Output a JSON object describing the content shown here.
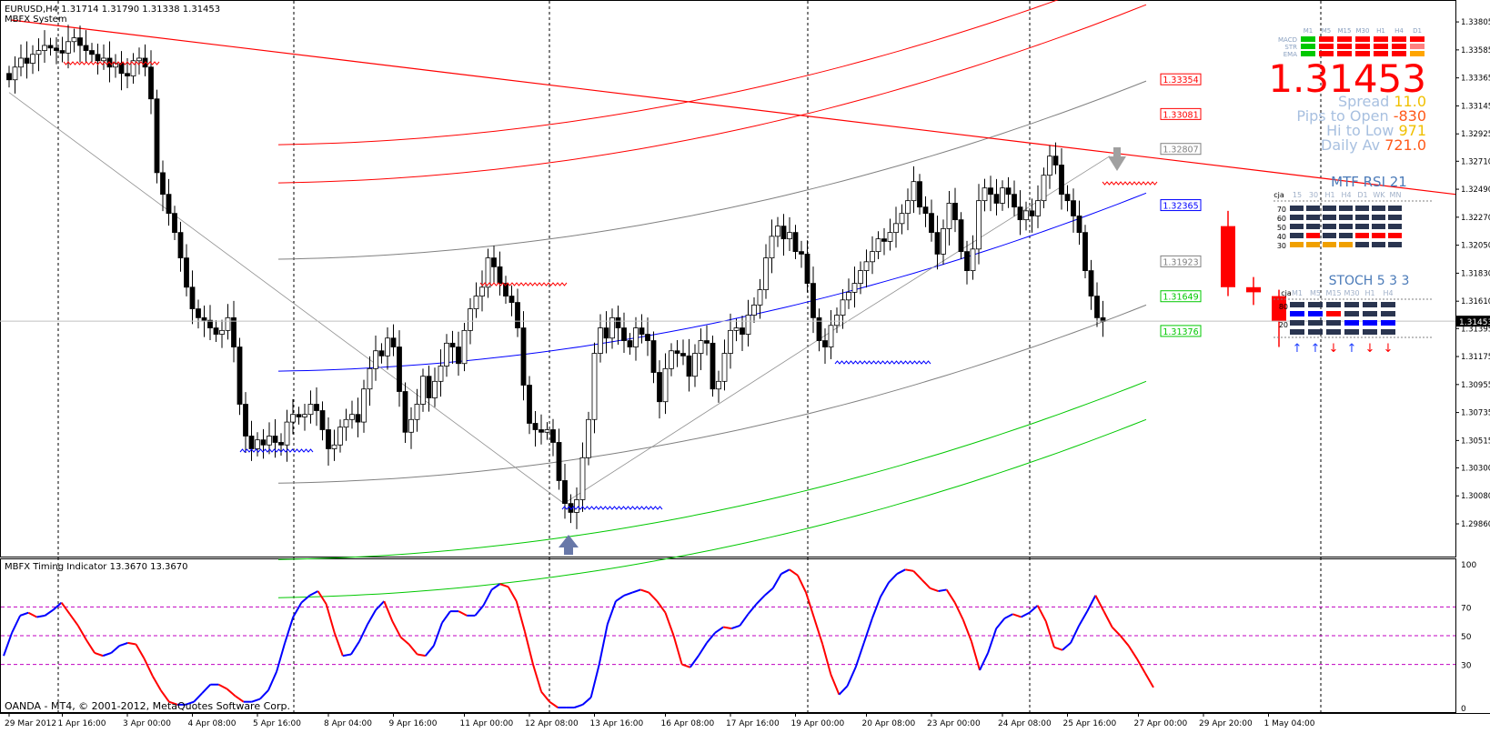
{
  "header": {
    "symbol_line": "EURUSD,H4  1.31714 1.31790 1.31338 1.31453",
    "system_name": "MBFX System"
  },
  "footer": {
    "copyright": "OANDA - MT4, © 2001-2012, MetaQuotes Software Corp."
  },
  "sub_window": {
    "title": "MBFX Timing Indicator 13.3670 13.3670"
  },
  "price_panel": {
    "big_price": "1.31453",
    "rows": [
      {
        "label": "Spread",
        "value": "11.0",
        "label_color": "#a8c0e0",
        "value_color": "#f0c000"
      },
      {
        "label": "Pips to Open",
        "value": "-830",
        "label_color": "#a8c0e0",
        "value_color": "#ff5a1a"
      },
      {
        "label": "Hi to Low",
        "value": "971",
        "label_color": "#a8c0e0",
        "value_color": "#f0c000"
      },
      {
        "label": "Daily Av",
        "value": "721.0",
        "label_color": "#a8c0e0",
        "value_color": "#ff5a1a"
      }
    ],
    "tf_labels": [
      "M1",
      "M5",
      "M15",
      "M30",
      "H1",
      "H4",
      "D1"
    ],
    "ind_labels": [
      "MACD",
      "STR",
      "EMA"
    ]
  },
  "rsi_panel": {
    "title": "MTF RSI  21",
    "header": [
      "cja",
      "15",
      "30",
      "H1",
      "H4",
      "D1",
      "WK",
      "MN"
    ],
    "levels": [
      "70",
      "60",
      "50",
      "40",
      "30"
    ]
  },
  "stoch_panel": {
    "title": "STOCH  5 3 3",
    "header": [
      "cja",
      "M1",
      "M5",
      "M15",
      "M30",
      "H1",
      "H4"
    ],
    "levels": [
      "80",
      "20"
    ],
    "arrows": [
      "↑",
      "↑",
      "↓",
      "↑",
      "↓",
      "↓"
    ]
  },
  "colors": {
    "bull": "#ffffff",
    "bear": "#000000",
    "red": "#ff0000",
    "blue": "#0000ff",
    "green": "#00c800",
    "gray": "#808080",
    "orange": "#ffa500",
    "magenta": "#c000c0"
  },
  "chart_data": [
    {
      "type": "candlestick",
      "title": "EURUSD,H4",
      "ylim": [
        1.2966,
        1.3392
      ],
      "y_ticks": [
        "1.33805",
        "1.33585",
        "1.33365",
        "1.33145",
        "1.32925",
        "1.32710",
        "1.32490",
        "1.32270",
        "1.32050",
        "1.31830",
        "1.31610",
        "1.31453",
        "1.31395",
        "1.31175",
        "1.30955",
        "1.30735",
        "1.30515",
        "1.30300",
        "1.30080",
        "1.29860"
      ],
      "current_price": "1.31453",
      "x_ticks": [
        "29 Mar 2012",
        "1 Apr 16:00",
        "3 Apr 00:00",
        "4 Apr 08:00",
        "5 Apr 16:00",
        "8 Apr 04:00",
        "9 Apr 16:00",
        "11 Apr 00:00",
        "12 Apr 08:00",
        "13 Apr 16:00",
        "16 Apr 08:00",
        "17 Apr 16:00",
        "19 Apr 00:00",
        "20 Apr 08:00",
        "23 Apr 00:00",
        "24 Apr 08:00",
        "25 Apr 16:00",
        "27 Apr 00:00",
        "29 Apr 20:00",
        "1 May 04:00"
      ],
      "close_path": [
        1.3335,
        1.3345,
        1.3352,
        1.3348,
        1.3355,
        1.3358,
        1.3362,
        1.336,
        1.3358,
        1.3356,
        1.3365,
        1.3368,
        1.3362,
        1.3358,
        1.3355,
        1.335,
        1.3352,
        1.3345,
        1.3348,
        1.334,
        1.3338,
        1.335,
        1.3352,
        1.3345,
        1.332,
        1.3262,
        1.3245,
        1.323,
        1.3215,
        1.3195,
        1.3172,
        1.3155,
        1.3148,
        1.3146,
        1.314,
        1.3135,
        1.3138,
        1.3148,
        1.3125,
        1.308,
        1.3055,
        1.3045,
        1.3052,
        1.3048,
        1.3055,
        1.305,
        1.3048,
        1.3066,
        1.3072,
        1.307,
        1.3072,
        1.308,
        1.3075,
        1.306,
        1.3045,
        1.3048,
        1.3062,
        1.3068,
        1.3072,
        1.3066,
        1.3092,
        1.3108,
        1.3122,
        1.3118,
        1.3132,
        1.3125,
        1.309,
        1.3058,
        1.3068,
        1.308,
        1.3102,
        1.3085,
        1.3098,
        1.311,
        1.3128,
        1.3125,
        1.3112,
        1.3138,
        1.3155,
        1.3165,
        1.3172,
        1.3195,
        1.3188,
        1.3175,
        1.3165,
        1.316,
        1.314,
        1.3095,
        1.3065,
        1.306,
        1.3058,
        1.306,
        1.305,
        1.302,
        1.3002,
        1.2995,
        1.3005,
        1.3038,
        1.3068,
        1.312,
        1.314,
        1.3132,
        1.3148,
        1.314,
        1.313,
        1.3125,
        1.314,
        1.3135,
        1.313,
        1.3105,
        1.3082,
        1.3108,
        1.3122,
        1.312,
        1.3118,
        1.3102,
        1.312,
        1.313,
        1.3128,
        1.3092,
        1.3098,
        1.312,
        1.3138,
        1.314,
        1.3135,
        1.315,
        1.3158,
        1.317,
        1.3195,
        1.3212,
        1.322,
        1.321,
        1.3215,
        1.32,
        1.3198,
        1.3175,
        1.3148,
        1.313,
        1.3125,
        1.3142,
        1.315,
        1.3162,
        1.3168,
        1.3175,
        1.3185,
        1.3192,
        1.32,
        1.321,
        1.3208,
        1.3215,
        1.3222,
        1.323,
        1.324,
        1.3255,
        1.3235,
        1.323,
        1.3215,
        1.3198,
        1.3218,
        1.3238,
        1.3225,
        1.32,
        1.3185,
        1.3202,
        1.324,
        1.325,
        1.3245,
        1.3238,
        1.325,
        1.3245,
        1.3235,
        1.3225,
        1.3232,
        1.3228,
        1.324,
        1.326,
        1.3275,
        1.3268,
        1.3245,
        1.324,
        1.3228,
        1.3215,
        1.3185,
        1.3165,
        1.3148,
        1.3145
      ],
      "forecast_candles": [
        {
          "open": 1.322,
          "high": 1.3232,
          "low": 1.3165,
          "close": 1.3172
        },
        {
          "open": 1.3172,
          "high": 1.318,
          "low": 1.3158,
          "close": 1.3168
        },
        {
          "open": 1.3165,
          "high": 1.317,
          "low": 1.3125,
          "close": 1.3145
        }
      ],
      "level_labels": [
        {
          "value": "1.33354",
          "color": "#ff0000"
        },
        {
          "value": "1.33081",
          "color": "#ff0000"
        },
        {
          "value": "1.32807",
          "color": "#808080"
        },
        {
          "value": "1.32365",
          "color": "#0000ff"
        },
        {
          "value": "1.31923",
          "color": "#808080"
        },
        {
          "value": "1.31649",
          "color": "#00c800"
        },
        {
          "value": "1.31376",
          "color": "#00c800"
        }
      ]
    },
    {
      "type": "line",
      "title": "MBFX Timing Indicator 13.3670 13.3670",
      "ylim": [
        0,
        100
      ],
      "y_ticks": [
        "100",
        "70",
        "50",
        "30",
        "0"
      ],
      "values": [
        36,
        52,
        64,
        66,
        63,
        64,
        68,
        73,
        65,
        57,
        47,
        38,
        36,
        38,
        43,
        45,
        44,
        34,
        22,
        12,
        4,
        2,
        2,
        4,
        10,
        16,
        16,
        13,
        8,
        4,
        4,
        6,
        12,
        25,
        45,
        63,
        73,
        78,
        81,
        72,
        52,
        36,
        37,
        46,
        58,
        68,
        74,
        60,
        49,
        44,
        37,
        36,
        43,
        59,
        67,
        67,
        64,
        64,
        71,
        82,
        86,
        84,
        74,
        53,
        30,
        11,
        4,
        0,
        0,
        0,
        2,
        7,
        30,
        58,
        74,
        78,
        80,
        82,
        80,
        74,
        66,
        50,
        30,
        28,
        36,
        45,
        52,
        56,
        55,
        57,
        65,
        72,
        78,
        83,
        93,
        96,
        92,
        80,
        62,
        44,
        23,
        9,
        15,
        28,
        45,
        62,
        77,
        87,
        93,
        96,
        95,
        89,
        83,
        81,
        82,
        73,
        61,
        46,
        26,
        38,
        55,
        62,
        65,
        63,
        66,
        71,
        60,
        42,
        40,
        45,
        57,
        67,
        78,
        67,
        56,
        50,
        43,
        34,
        24,
        14
      ]
    }
  ]
}
